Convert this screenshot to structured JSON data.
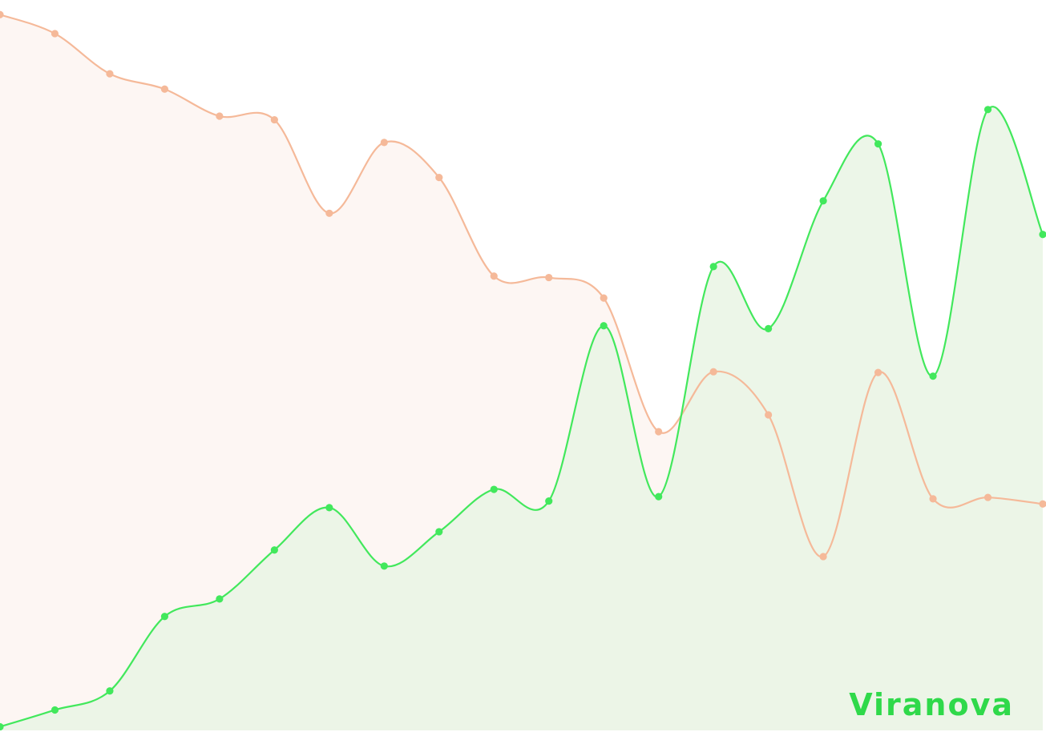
{
  "brand": {
    "name": "Viranova",
    "color": "#2fd94a"
  },
  "chart_data": {
    "type": "area",
    "title": "",
    "xlabel": "",
    "ylabel": "",
    "grid": false,
    "axes_visible": false,
    "ylim": [
      0,
      100
    ],
    "x": [
      0,
      1,
      2,
      3,
      4,
      5,
      6,
      7,
      8,
      9,
      10,
      11,
      12,
      13,
      14,
      15,
      16,
      17,
      18,
      19
    ],
    "series": [
      {
        "color": "#f5b999",
        "fill": "#fdf6f3",
        "values": [
          98.0,
          95.4,
          89.9,
          87.8,
          84.1,
          83.6,
          70.8,
          80.5,
          75.7,
          62.2,
          62.0,
          59.2,
          40.9,
          49.1,
          43.2,
          23.8,
          49.0,
          31.7,
          31.9,
          31.0
        ]
      },
      {
        "color": "#42e85c",
        "fill": "#e9f5e4",
        "values": [
          0.5,
          2.8,
          5.4,
          15.6,
          18.0,
          24.7,
          30.5,
          22.5,
          27.2,
          33.0,
          31.4,
          55.4,
          32.0,
          63.5,
          55.0,
          72.5,
          80.3,
          48.5,
          85.0,
          67.9
        ]
      }
    ]
  }
}
